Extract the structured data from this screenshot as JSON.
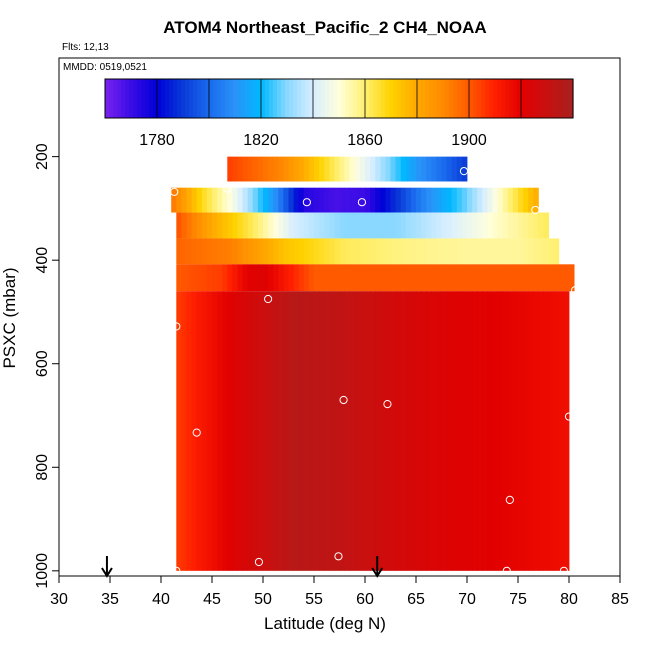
{
  "chart_data": {
    "type": "heatmap",
    "title": "ATOM4 Northeast_Pacific_2 CH4_NOAA",
    "flights_label": "Flts: 12,13",
    "dates_label": "MMDD: 0519,0521",
    "xlabel": "Latitude (deg N)",
    "ylabel": "PSXC (mbar)",
    "xlim": [
      30,
      85
    ],
    "ylim": [
      1010,
      0
    ],
    "x_ticks": [
      30,
      35,
      40,
      45,
      50,
      55,
      60,
      65,
      70,
      75,
      80,
      85
    ],
    "y_ticks": [
      200,
      400,
      600,
      800,
      1000
    ],
    "colorbar": {
      "range": [
        1760,
        1940
      ],
      "tick_values": [
        1780,
        1820,
        1860,
        1900
      ],
      "tick_labels": [
        "1780",
        "1820",
        "1860",
        "1900"
      ],
      "colors": [
        "#7a22ee",
        "#3a0ce6",
        "#0000d8",
        "#0a3ad8",
        "#1a6aee",
        "#2a92f8",
        "#00b8ff",
        "#8ad8ff",
        "#d8eeff",
        "#ffffdc",
        "#fff070",
        "#ffd200",
        "#ffa800",
        "#ff8a00",
        "#ff5a00",
        "#ff1e00",
        "#e20000",
        "#c81010",
        "#a82020"
      ]
    },
    "layers": [
      {
        "p_top": 200,
        "p_bottom": 248,
        "lat_start": 46.5,
        "lat_end": 70.0,
        "lat_points": [
          46.5,
          52,
          57,
          61,
          65,
          70
        ],
        "values": [
          1905,
          1890,
          1862,
          1838,
          1812,
          1790
        ]
      },
      {
        "p_top": 260,
        "p_bottom": 308,
        "lat_start": 41.0,
        "lat_end": 77.0,
        "lat_points": [
          41,
          44,
          47,
          51,
          54,
          57,
          60,
          63,
          66,
          70,
          74,
          77
        ],
        "values": [
          1895,
          1868,
          1848,
          1812,
          1774,
          1768,
          1770,
          1788,
          1808,
          1828,
          1858,
          1880
        ]
      },
      {
        "p_top": 308,
        "p_bottom": 358,
        "lat_start": 41.5,
        "lat_end": 78.0,
        "lat_points": [
          41.5,
          45,
          49,
          53,
          58,
          63,
          68,
          73,
          78
        ],
        "values": [
          1902,
          1880,
          1862,
          1840,
          1830,
          1830,
          1840,
          1852,
          1862
        ]
      },
      {
        "p_top": 358,
        "p_bottom": 408,
        "lat_start": 41.5,
        "lat_end": 79.0,
        "lat_points": [
          41.5,
          47,
          52,
          58,
          64,
          70,
          75,
          79
        ],
        "values": [
          1898,
          1892,
          1874,
          1862,
          1858,
          1856,
          1856,
          1860
        ]
      },
      {
        "p_top": 408,
        "p_bottom": 460,
        "lat_start": 41.5,
        "lat_end": 80.5,
        "lat_points": [
          41.5,
          46,
          48.5,
          50,
          55,
          60,
          65,
          70,
          75,
          80.5
        ],
        "values": [
          1900,
          1905,
          1920,
          1922,
          1900,
          1900,
          1900,
          1900,
          1900,
          1900
        ]
      },
      {
        "p_top": 460,
        "p_bottom": 1000,
        "lat_start": 41.5,
        "lat_end": 80.0,
        "lat_points": [
          41.5,
          48,
          53,
          58,
          63,
          68,
          73,
          80
        ],
        "values": [
          1905,
          1924,
          1935,
          1932,
          1926,
          1922,
          1920,
          1915
        ]
      }
    ],
    "flight_points": [
      {
        "lat": 69.7,
        "p": 228
      },
      {
        "lat": 46.5,
        "p": 262
      },
      {
        "lat": 41.3,
        "p": 268
      },
      {
        "lat": 54.3,
        "p": 288
      },
      {
        "lat": 59.7,
        "p": 288
      },
      {
        "lat": 76.7,
        "p": 303
      },
      {
        "lat": 80.6,
        "p": 458
      },
      {
        "lat": 50.5,
        "p": 475
      },
      {
        "lat": 41.5,
        "p": 528
      },
      {
        "lat": 57.9,
        "p": 670
      },
      {
        "lat": 62.2,
        "p": 678
      },
      {
        "lat": 80.0,
        "p": 702
      },
      {
        "lat": 43.5,
        "p": 733
      },
      {
        "lat": 74.2,
        "p": 863
      },
      {
        "lat": 57.4,
        "p": 972
      },
      {
        "lat": 49.6,
        "p": 983
      },
      {
        "lat": 41.5,
        "p": 1000
      },
      {
        "lat": 73.9,
        "p": 1000
      },
      {
        "lat": 79.5,
        "p": 1000
      }
    ],
    "arrows": [
      34.7,
      61.2
    ]
  }
}
